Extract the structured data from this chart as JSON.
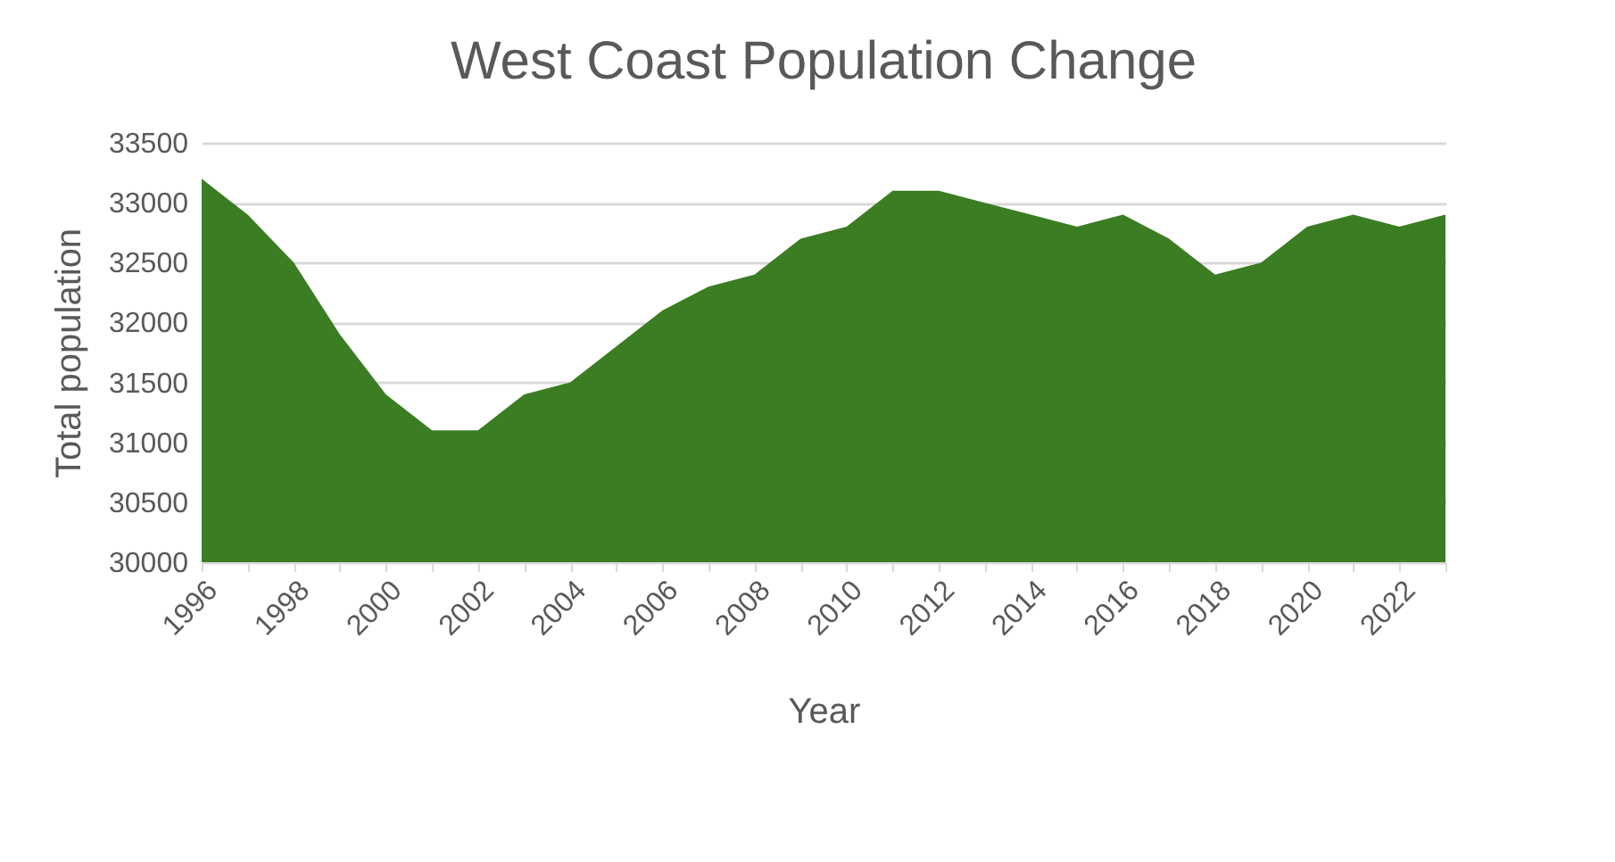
{
  "chart_data": {
    "type": "area",
    "title": "West Coast Population Change",
    "xlabel": "Year",
    "ylabel": "Total population",
    "categories": [
      "1996",
      null,
      "1998",
      null,
      "2000",
      null,
      "2002",
      null,
      "2004",
      null,
      "2006",
      null,
      "2008",
      null,
      "2010",
      null,
      "2012",
      null,
      "2014",
      null,
      "2016",
      null,
      "2018",
      null,
      "2020",
      null,
      "2022",
      null
    ],
    "series": [
      {
        "color": "#3b7d23",
        "values": [
          33200,
          32900,
          32500,
          31900,
          31400,
          31100,
          31100,
          31400,
          31500,
          31800,
          32100,
          32300,
          32400,
          32700,
          32800,
          33100,
          33100,
          33000,
          32900,
          32800,
          32900,
          32700,
          32400,
          32500,
          32800,
          32900,
          32800,
          32900
        ]
      }
    ],
    "ylim": [
      30000,
      33500
    ],
    "yticks": [
      30000,
      30500,
      31000,
      31500,
      32000,
      32500,
      33000,
      33500
    ],
    "grid": "y"
  }
}
